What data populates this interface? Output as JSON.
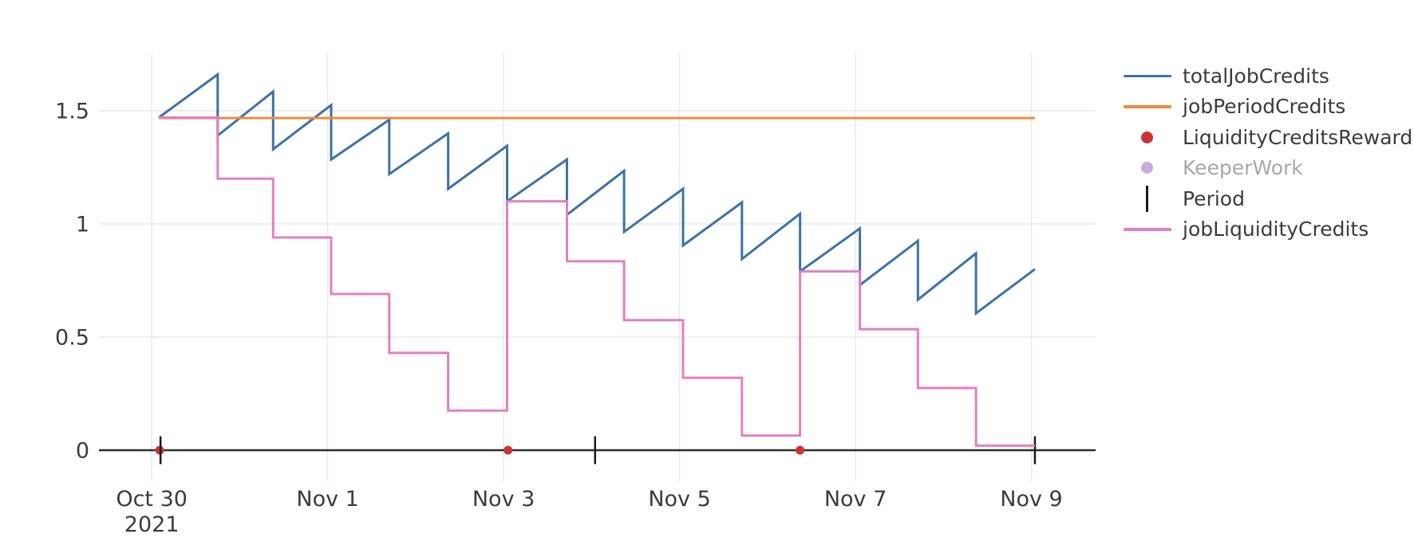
{
  "chart_data": {
    "type": "line",
    "title": "",
    "x_axis": {
      "unit": "date",
      "range": [
        -0.6,
        10.73
      ],
      "ticks": [
        {
          "t": 0,
          "label": "Oct 30",
          "sub": "2021"
        },
        {
          "t": 2,
          "label": "Nov 1"
        },
        {
          "t": 4,
          "label": "Nov 3"
        },
        {
          "t": 6,
          "label": "Nov 5"
        },
        {
          "t": 8,
          "label": "Nov 7"
        },
        {
          "t": 10,
          "label": "Nov 9"
        }
      ]
    },
    "y_axis": {
      "range": [
        -0.0915,
        1.757
      ],
      "ticks": [
        {
          "v": 0,
          "label": "0"
        },
        {
          "v": 0.5,
          "label": "0.5"
        },
        {
          "v": 1,
          "label": "1"
        },
        {
          "v": 1.5,
          "label": "1.5"
        }
      ]
    },
    "colors": {
      "grid": "#e9e9e9",
      "zero_line": "#2d2d2d",
      "text": "#3b3b3b",
      "muted_text": "#a8a8a8"
    },
    "series": [
      {
        "name": "totalJobCredits",
        "kind": "line",
        "color": "#3c73a8",
        "width": 3,
        "points": [
          [
            0.08,
            1.47
          ],
          [
            0.75,
            1.66
          ],
          [
            0.75,
            1.39
          ],
          [
            1.38,
            1.585
          ],
          [
            1.38,
            1.33
          ],
          [
            2.04,
            1.525
          ],
          [
            2.04,
            1.285
          ],
          [
            2.7,
            1.46
          ],
          [
            2.7,
            1.22
          ],
          [
            3.37,
            1.4
          ],
          [
            3.37,
            1.155
          ],
          [
            4.04,
            1.345
          ],
          [
            4.04,
            1.1
          ],
          [
            4.72,
            1.285
          ],
          [
            4.72,
            1.04
          ],
          [
            5.37,
            1.235
          ],
          [
            5.37,
            0.965
          ],
          [
            6.04,
            1.155
          ],
          [
            6.04,
            0.905
          ],
          [
            6.71,
            1.095
          ],
          [
            6.71,
            0.845
          ],
          [
            7.37,
            1.045
          ],
          [
            7.37,
            0.79
          ],
          [
            8.05,
            0.98
          ],
          [
            8.05,
            0.73
          ],
          [
            8.71,
            0.925
          ],
          [
            8.71,
            0.665
          ],
          [
            9.37,
            0.87
          ],
          [
            9.37,
            0.605
          ],
          [
            10.04,
            0.8
          ]
        ]
      },
      {
        "name": "jobPeriodCredits",
        "kind": "line",
        "color": "#ee8c3d",
        "width": 3,
        "points": [
          [
            0.08,
            1.468
          ],
          [
            10.04,
            1.468
          ]
        ]
      },
      {
        "name": "LiquidityCreditsReward",
        "kind": "scatter",
        "color": "#cd3232",
        "radius": 5.5,
        "points": [
          [
            0.09,
            0
          ],
          [
            4.05,
            0
          ],
          [
            7.37,
            0
          ]
        ]
      },
      {
        "name": "KeeperWork",
        "kind": "scatter",
        "color": "#c8addc",
        "radius": 5.5,
        "hidden": true,
        "points": []
      },
      {
        "name": "Period",
        "kind": "tick",
        "color": "#1a1a1a",
        "width": 2.5,
        "half_height": 17.5,
        "points": [
          [
            0.1,
            0
          ],
          [
            5.04,
            0
          ],
          [
            10.04,
            0
          ]
        ]
      },
      {
        "name": "jobLiquidityCredits",
        "kind": "line",
        "color": "#e37fc2",
        "width": 3,
        "points": [
          [
            0.08,
            1.47
          ],
          [
            0.75,
            1.47
          ],
          [
            0.75,
            1.2
          ],
          [
            1.38,
            1.2
          ],
          [
            1.38,
            0.94
          ],
          [
            2.04,
            0.94
          ],
          [
            2.04,
            0.69
          ],
          [
            2.7,
            0.69
          ],
          [
            2.7,
            0.43
          ],
          [
            3.37,
            0.43
          ],
          [
            3.37,
            0.175
          ],
          [
            4.04,
            0.175
          ],
          [
            4.04,
            1.1
          ],
          [
            4.72,
            1.1
          ],
          [
            4.72,
            0.835
          ],
          [
            5.37,
            0.835
          ],
          [
            5.37,
            0.575
          ],
          [
            6.04,
            0.575
          ],
          [
            6.04,
            0.32
          ],
          [
            6.71,
            0.32
          ],
          [
            6.71,
            0.065
          ],
          [
            7.37,
            0.065
          ],
          [
            7.37,
            0.79
          ],
          [
            8.05,
            0.79
          ],
          [
            8.05,
            0.535
          ],
          [
            8.71,
            0.535
          ],
          [
            8.71,
            0.275
          ],
          [
            9.37,
            0.275
          ],
          [
            9.37,
            0.02
          ],
          [
            10.04,
            0.02
          ]
        ]
      }
    ],
    "legend": [
      {
        "label": "totalJobCredits",
        "sample": "line",
        "color": "#3c73a8",
        "muted": false
      },
      {
        "label": "jobPeriodCredits",
        "sample": "line",
        "color": "#ee8c3d",
        "muted": false
      },
      {
        "label": "LiquidityCreditsReward",
        "sample": "dot",
        "color": "#cd3232",
        "muted": false
      },
      {
        "label": "KeeperWork",
        "sample": "dot",
        "color": "#c8addc",
        "muted": true
      },
      {
        "label": "Period",
        "sample": "tick",
        "color": "#1a1a1a",
        "muted": false
      },
      {
        "label": "jobLiquidityCredits",
        "sample": "line",
        "color": "#e37fc2",
        "muted": false
      }
    ]
  }
}
